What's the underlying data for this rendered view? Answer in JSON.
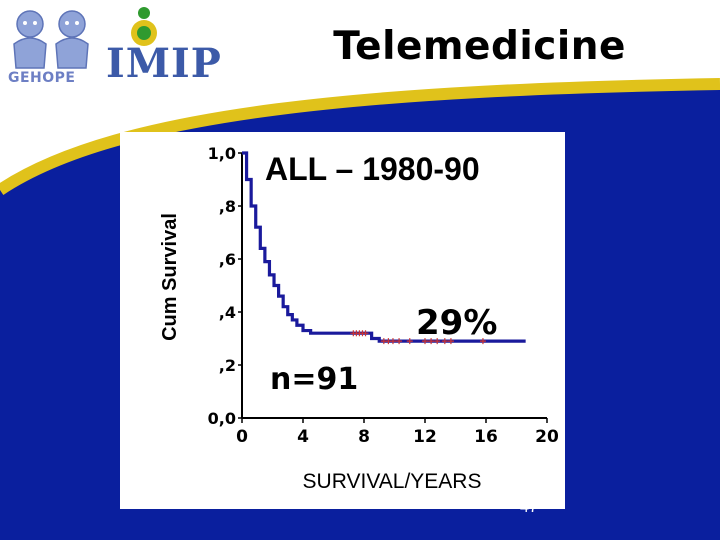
{
  "slide": {
    "title": "Telemedicine",
    "logo_left": "GEHOPE",
    "logo_right": "IMIP",
    "number": "47",
    "colors": {
      "background_blue": "#0a1f9e",
      "accent_yellow": "#e0c21b",
      "logo_blue": "#3c5aa8",
      "logo_green": "#2f9a2f"
    }
  },
  "chart_data": {
    "type": "line",
    "title": "ALL – 1980-90",
    "xlabel": "SURVIVAL/YEARS",
    "ylabel": "Cum Survival",
    "x_ticks": [
      "0",
      "4",
      "8",
      "12",
      "16",
      "20"
    ],
    "y_ticks": [
      "0,0",
      ",2",
      ",4",
      ",6",
      ",8",
      "1,0"
    ],
    "xlim": [
      0,
      20
    ],
    "ylim": [
      0,
      1
    ],
    "grid": false,
    "annotations": [
      "29%",
      "n=91"
    ],
    "series": [
      {
        "color": "#1a1a9c",
        "censor_color": "#cc3333",
        "x": [
          0,
          0.3,
          0.6,
          0.9,
          1.2,
          1.5,
          1.8,
          2.1,
          2.4,
          2.7,
          3.0,
          3.3,
          3.6,
          4.0,
          4.5,
          5.5,
          7.5,
          8.5,
          9.0,
          18.6
        ],
        "y": [
          1.0,
          0.9,
          0.8,
          0.72,
          0.64,
          0.59,
          0.54,
          0.5,
          0.46,
          0.42,
          0.39,
          0.37,
          0.35,
          0.33,
          0.32,
          0.32,
          0.32,
          0.3,
          0.29,
          0.29
        ],
        "censored": [
          7.3,
          7.5,
          7.7,
          7.9,
          8.1,
          9.3,
          9.6,
          9.9,
          10.3,
          11.0,
          12.0,
          12.4,
          12.8,
          13.3,
          13.7,
          15.8
        ]
      }
    ]
  }
}
